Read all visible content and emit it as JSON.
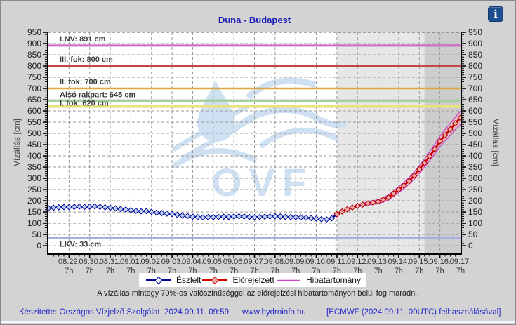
{
  "page": {
    "title": "Duna - Budapest"
  },
  "info_icon": {
    "glyph": "i"
  },
  "watermark": {
    "text": "OVF"
  },
  "legend": {
    "items": [
      {
        "label": "Észlelt"
      },
      {
        "label": "Előrejelzett"
      },
      {
        "label": "Hibatartomány"
      }
    ]
  },
  "caption": "A vízállás mintegy 70%-os valószínűséggel az előrejelzési hibatartományon belül fog maradni.",
  "footer": {
    "made_by": "Készítette: Országos Vízjelző Szolgálat, 2024.09.11. 09:59",
    "site": "www.hydroinfo.hu",
    "model": "[ECMWF (2024.09.11. 00UTC) felhasználásával]"
  },
  "chart_data": {
    "type": "line",
    "title": "Duna - Budapest",
    "y_axis": {
      "title": "Vízállás [cm]",
      "min": -31,
      "max": 950,
      "label_min": 0,
      "label_max": 950,
      "major_step": 50,
      "minor_step": 10
    },
    "x_axis": {
      "span_days": 20,
      "first_label_day": 1,
      "minor_step_days": 0.25,
      "sublabel": "7h",
      "labels": [
        "08.29.",
        "08.30.",
        "08.31.",
        "09.01.",
        "09.02.",
        "09.03.",
        "09.04.",
        "09.05.",
        "09.06.",
        "09.07.",
        "09.08.",
        "09.09.",
        "09.10.",
        "09.11.",
        "09.12.",
        "09.13.",
        "09.14.",
        "09.15.",
        "09.16.",
        "09.17."
      ]
    },
    "reference_lines": [
      {
        "label": "LNV: 891 cm",
        "value": 891,
        "color": "#cc66cc",
        "width": 3,
        "label_dy": -6
      },
      {
        "label": "III. fok: 800 cm",
        "value": 800,
        "color": "#c04848",
        "width": 2.5,
        "label_dy": -6
      },
      {
        "label": "II. fok: 700 cm",
        "value": 700,
        "color": "#d9a93f",
        "width": 2.5,
        "label_dy": -6
      },
      {
        "label": "Alsó rakpart: 645 cm",
        "value": 645,
        "color": "#a6cfa0",
        "width": 4,
        "label_dy": -5
      },
      {
        "label": "I. fok: 620 cm",
        "value": 620,
        "color": "#e9e27e",
        "width": 4,
        "label_dy": -1
      },
      {
        "label": "LKV: 33 cm",
        "value": 33,
        "color": "#a9ade0",
        "width": 3,
        "label_dy": 12
      }
    ],
    "background_bands": [
      {
        "from_day": 14,
        "to_day": 20,
        "color": "#e7e7e7"
      },
      {
        "from_day": 18.25,
        "to_day": 20,
        "color": "#cdcdcd"
      }
    ],
    "series": [
      {
        "name": "Észlelt",
        "color": "#000099",
        "marker_fill": "#b9d2ee",
        "start_day": 0,
        "step_days": 0.25,
        "values": [
          167,
          169,
          171,
          172,
          172,
          173,
          174,
          173,
          174,
          175,
          173,
          171,
          169,
          166,
          163,
          161,
          158,
          155,
          153,
          154,
          151,
          147,
          145,
          143,
          141,
          137,
          134,
          132,
          129,
          127,
          126,
          127,
          127,
          128,
          129,
          128,
          130,
          131,
          130,
          128,
          127,
          128,
          129,
          130,
          131,
          130,
          128,
          127,
          127,
          126,
          125,
          123,
          121,
          118,
          117,
          122,
          140
        ]
      },
      {
        "name": "Előrejelzett",
        "color": "#d40000",
        "marker_fill": "#f4a9a9",
        "band_color": "#cc44cc",
        "start_day": 14,
        "step_days": 0.25,
        "values": [
          140,
          152,
          162,
          170,
          177,
          183,
          188,
          192,
          196,
          205,
          215,
          232,
          250,
          268,
          288,
          312,
          340,
          368,
          398,
          430,
          465,
          492,
          518,
          545,
          570
        ],
        "band_halfwidth": [
          0,
          2,
          3,
          4,
          5,
          6,
          7,
          8,
          9,
          10,
          11,
          12,
          13,
          14,
          15,
          16,
          17,
          18,
          20,
          21,
          23,
          25,
          27,
          28,
          30
        ]
      }
    ]
  }
}
